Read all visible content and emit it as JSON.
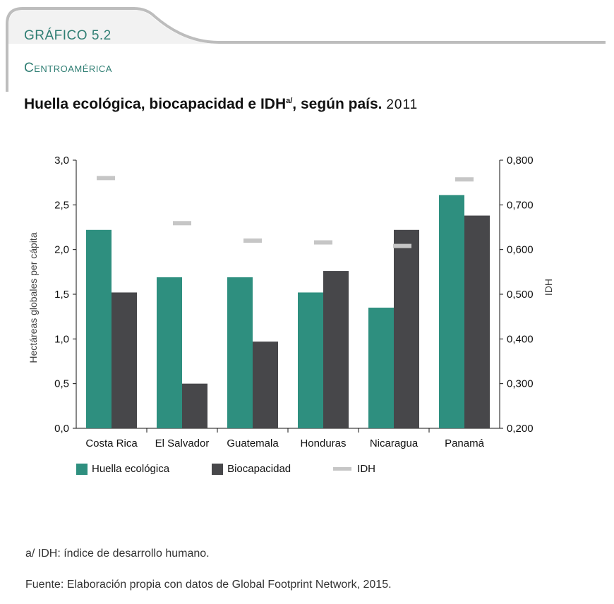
{
  "header": {
    "figure_label": "GRÁFICO 5.2",
    "region": "Centroamérica",
    "title_main": "Huella ecológica, biocapacidad e IDH",
    "title_sup": "a/",
    "title_rest": ", según país.",
    "title_year": "2011"
  },
  "colors": {
    "accent": "#2f7e73",
    "huella": "#2e8f7f",
    "biocapacidad": "#47474a",
    "idh": "#c6c6c6",
    "tab_line": "#bdbdbd"
  },
  "chart_data": {
    "type": "bar",
    "title": "Huella ecológica, biocapacidad e IDH, según país. 2011",
    "categories": [
      "Costa Rica",
      "El Salvador",
      "Guatemala",
      "Honduras",
      "Nicaragua",
      "Panamá"
    ],
    "series": [
      {
        "name": "Huella ecológica",
        "axis": "left",
        "values": [
          2.22,
          1.69,
          1.69,
          1.52,
          1.35,
          2.61
        ]
      },
      {
        "name": "Biocapacidad",
        "axis": "left",
        "values": [
          1.52,
          0.5,
          0.97,
          1.76,
          2.22,
          2.38
        ]
      },
      {
        "name": "IDH",
        "axis": "right",
        "marker": "dash",
        "values": [
          0.76,
          0.659,
          0.62,
          0.616,
          0.608,
          0.757
        ]
      }
    ],
    "ylabel": "Hectáreas globales per cápita",
    "y2label": "IDH",
    "ylim": [
      0,
      3.0
    ],
    "y2lim": [
      0.2,
      0.8
    ],
    "yticks": [
      "0,0",
      "0,5",
      "1,0",
      "1,5",
      "2,0",
      "2,5",
      "3,0"
    ],
    "y2ticks": [
      "0,200",
      "0,300",
      "0,400",
      "0,500",
      "0,600",
      "0,700",
      "0,800"
    ],
    "grid": false,
    "legend_position": "bottom"
  },
  "legend": {
    "items": [
      "Huella ecológica",
      "Biocapacidad",
      "IDH"
    ]
  },
  "notes": {
    "footnote": "a/ IDH: índice de desarrollo humano.",
    "source": "Fuente: Elaboración propia con datos de Global Footprint Network, 2015."
  }
}
